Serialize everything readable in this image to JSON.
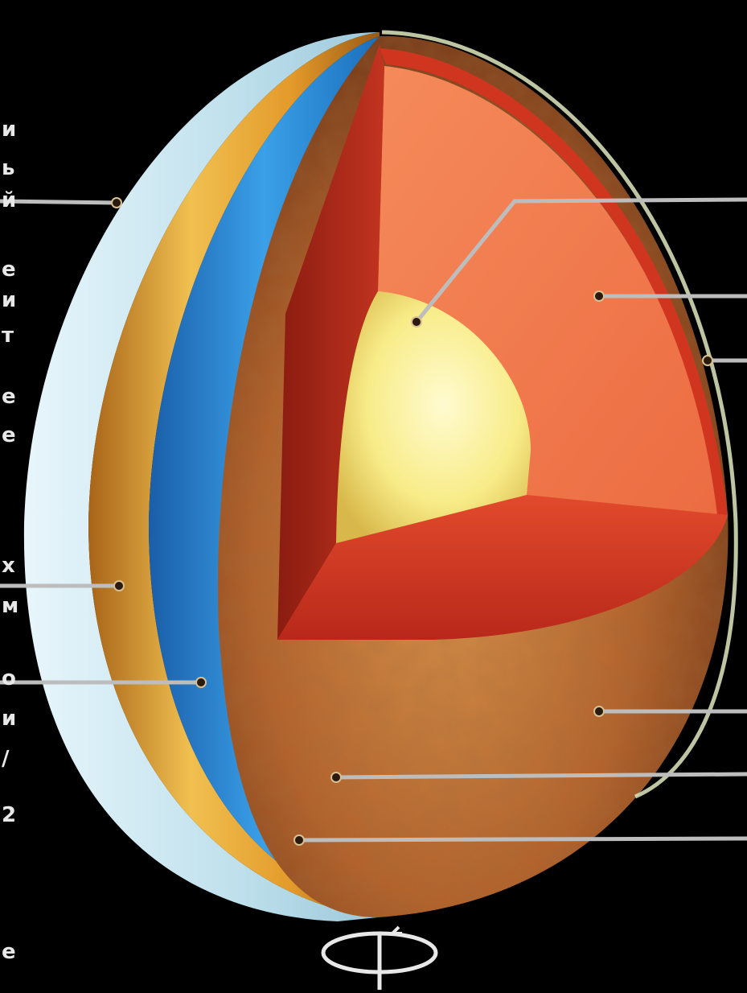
{
  "diagram": {
    "left_edge_glyphs": [
      "и",
      "ь",
      "й",
      "е",
      "и",
      "т",
      "е",
      "е",
      "х",
      "м",
      "о",
      "и",
      "/",
      "2",
      "е"
    ]
  },
  "colors": {
    "background": "#000000",
    "ice_layer": "#cfe8f0",
    "amber_layer": "#e0a030",
    "blue_layer": "#2a86d0",
    "rock_surface": "#b8662e",
    "mantle": "#f07a50",
    "inner_crust": "#c8301c",
    "core": "#f8ec88",
    "leader_line": "#bdbdbd"
  }
}
